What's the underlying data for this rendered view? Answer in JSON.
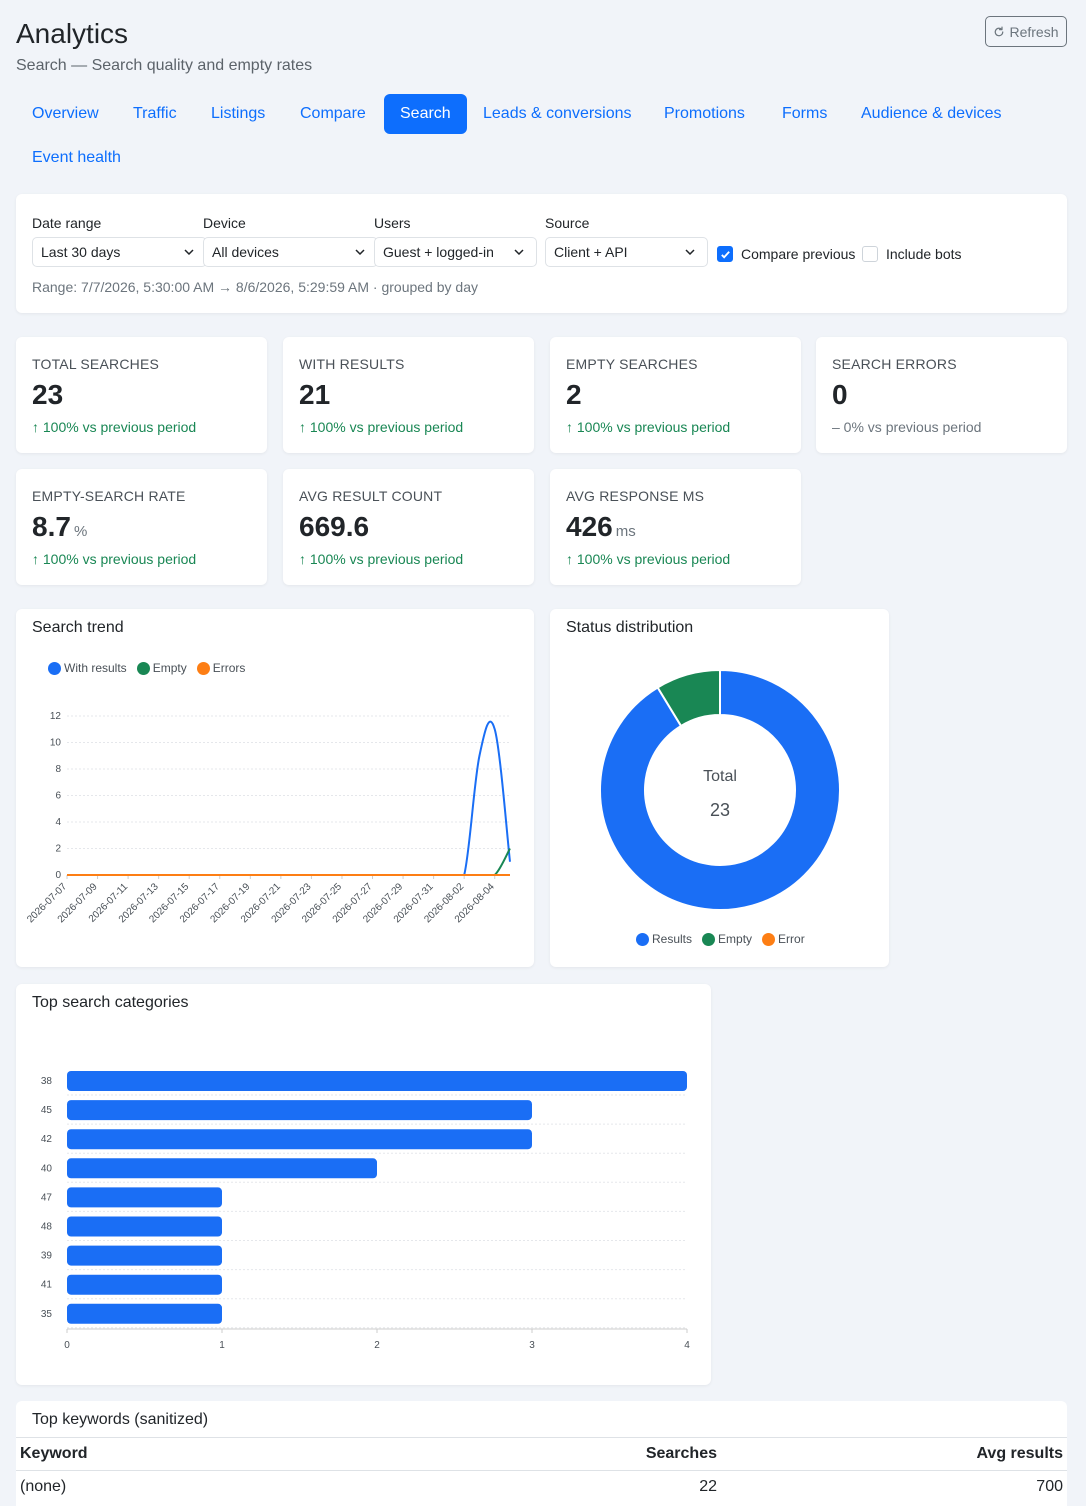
{
  "header": {
    "title": "Analytics",
    "subtitle": "Search — Search quality and empty rates",
    "refresh_label": "Refresh"
  },
  "tabs": [
    {
      "label": "Overview",
      "active": false
    },
    {
      "label": "Traffic",
      "active": false
    },
    {
      "label": "Listings",
      "active": false
    },
    {
      "label": "Compare",
      "active": false
    },
    {
      "label": "Search",
      "active": true
    },
    {
      "label": "Leads & conversions",
      "active": false
    },
    {
      "label": "Promotions",
      "active": false
    },
    {
      "label": "Forms",
      "active": false
    },
    {
      "label": "Audience & devices",
      "active": false
    },
    {
      "label": "Event health",
      "active": false
    }
  ],
  "filters": {
    "date_range": {
      "label": "Date range",
      "value": "Last 30 days"
    },
    "device": {
      "label": "Device",
      "value": "All devices"
    },
    "users": {
      "label": "Users",
      "value": "Guest + logged-in"
    },
    "source": {
      "label": "Source",
      "value": "Client + API"
    },
    "compare_previous": {
      "label": "Compare previous",
      "checked": true
    },
    "include_bots": {
      "label": "Include bots",
      "checked": false
    },
    "range_text": "Range: 7/7/2026, 5:30:00 AM → 8/6/2026, 5:29:59 AM · grouped by day"
  },
  "kpis": [
    {
      "label": "Total searches",
      "value": "23",
      "unit": "",
      "delta": "↑ 100% vs previous period"
    },
    {
      "label": "With results",
      "value": "21",
      "unit": "",
      "delta": "↑ 100% vs previous period"
    },
    {
      "label": "Empty searches",
      "value": "2",
      "unit": "",
      "delta": "↑ 100% vs previous period"
    },
    {
      "label": "Search errors",
      "value": "0",
      "unit": "",
      "delta": "– 0% vs previous period"
    },
    {
      "label": "Empty-search rate",
      "value": "8.7",
      "unit": "%",
      "delta": "↑ 100% vs previous period"
    },
    {
      "label": "Avg result count",
      "value": "669.6",
      "unit": "",
      "delta": "↑ 100% vs previous period"
    },
    {
      "label": "Avg response ms",
      "value": "426",
      "unit": "ms",
      "delta": "↑ 100% vs previous period"
    }
  ],
  "colors": {
    "primary": "#0d6efd",
    "results": "#1a6ef5",
    "empty": "#198754",
    "errors": "#fd7e14",
    "delta_up": "#198754"
  },
  "trend_card": {
    "title": "Search trend",
    "legend": [
      {
        "label": "With results",
        "color": "#1a6ef5"
      },
      {
        "label": "Empty",
        "color": "#198754"
      },
      {
        "label": "Errors",
        "color": "#fd7e14"
      }
    ]
  },
  "status_card": {
    "title": "Status distribution",
    "center_label": "Total",
    "center_value": "23",
    "legend": [
      {
        "label": "Results",
        "color": "#1a6ef5"
      },
      {
        "label": "Empty",
        "color": "#198754"
      },
      {
        "label": "Error",
        "color": "#fd7e14"
      }
    ]
  },
  "categories_card": {
    "title": "Top search categories"
  },
  "keywords": {
    "title": "Top keywords (sanitized)",
    "columns": [
      "Keyword",
      "Searches",
      "Avg results"
    ],
    "rows": [
      {
        "keyword": "(none)",
        "searches": "22",
        "avg_results": "700"
      }
    ]
  },
  "chart_data": [
    {
      "type": "line",
      "title": "Search trend",
      "x": [
        "2026-07-07",
        "2026-07-08",
        "2026-07-09",
        "2026-07-10",
        "2026-07-11",
        "2026-07-12",
        "2026-07-13",
        "2026-07-14",
        "2026-07-15",
        "2026-07-16",
        "2026-07-17",
        "2026-07-18",
        "2026-07-19",
        "2026-07-20",
        "2026-07-21",
        "2026-07-22",
        "2026-07-23",
        "2026-07-24",
        "2026-07-25",
        "2026-07-26",
        "2026-07-27",
        "2026-07-28",
        "2026-07-29",
        "2026-07-30",
        "2026-07-31",
        "2026-08-01",
        "2026-08-02",
        "2026-08-03",
        "2026-08-04",
        "2026-08-05"
      ],
      "x_tick_labels": [
        "2026-07-07",
        "2026-07-09",
        "2026-07-11",
        "2026-07-13",
        "2026-07-15",
        "2026-07-17",
        "2026-07-19",
        "2026-07-21",
        "2026-07-23",
        "2026-07-25",
        "2026-07-27",
        "2026-07-29",
        "2026-07-31",
        "2026-08-02",
        "2026-08-04"
      ],
      "series": [
        {
          "name": "With results",
          "values": [
            0,
            0,
            0,
            0,
            0,
            0,
            0,
            0,
            0,
            0,
            0,
            0,
            0,
            0,
            0,
            0,
            0,
            0,
            0,
            0,
            0,
            0,
            0,
            0,
            0,
            0,
            0,
            9,
            11,
            1
          ]
        },
        {
          "name": "Empty",
          "values": [
            0,
            0,
            0,
            0,
            0,
            0,
            0,
            0,
            0,
            0,
            0,
            0,
            0,
            0,
            0,
            0,
            0,
            0,
            0,
            0,
            0,
            0,
            0,
            0,
            0,
            0,
            0,
            0,
            0,
            2
          ]
        },
        {
          "name": "Errors",
          "values": [
            0,
            0,
            0,
            0,
            0,
            0,
            0,
            0,
            0,
            0,
            0,
            0,
            0,
            0,
            0,
            0,
            0,
            0,
            0,
            0,
            0,
            0,
            0,
            0,
            0,
            0,
            0,
            0,
            0,
            0
          ]
        }
      ],
      "y_ticks": [
        0,
        2,
        4,
        6,
        8,
        10,
        12
      ],
      "ylim": [
        0,
        12
      ],
      "grid": true,
      "legend": "top-left"
    },
    {
      "type": "pie",
      "title": "Status distribution",
      "labels": [
        "Results",
        "Empty",
        "Error"
      ],
      "values": [
        21,
        2,
        0
      ],
      "donut": true,
      "legend": "bottom"
    },
    {
      "type": "bar",
      "title": "Top search categories",
      "orientation": "horizontal",
      "categories": [
        "38",
        "45",
        "42",
        "40",
        "47",
        "48",
        "39",
        "41",
        "35"
      ],
      "values": [
        4,
        3,
        3,
        2,
        1,
        1,
        1,
        1,
        1
      ],
      "x_ticks": [
        0,
        1,
        2,
        3,
        4
      ],
      "xlim": [
        0,
        4
      ],
      "grid": true
    }
  ]
}
